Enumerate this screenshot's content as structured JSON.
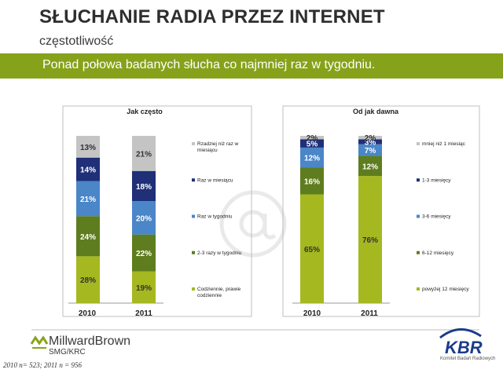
{
  "header": {
    "title": "SŁUCHANIE RADIA PRZEZ INTERNET",
    "subtitle": "częstotliwość",
    "banner": "Ponad połowa badanych słucha co najmniej raz w tygodniu."
  },
  "chart_data": [
    {
      "type": "bar",
      "stacked": true,
      "title": "Jak często",
      "categories": [
        "2010",
        "2011"
      ],
      "ylim": [
        0,
        100
      ],
      "series": [
        {
          "name": "Codziennie, prawie codziennie",
          "color": "#a5b820",
          "values": [
            28,
            19
          ],
          "labels": [
            "28%",
            "19%"
          ],
          "label_color": "#333333"
        },
        {
          "name": "2-3 razy w tygodniu",
          "color": "#5e7d1e",
          "values": [
            24,
            22
          ],
          "labels": [
            "24%",
            "22%"
          ],
          "label_color": "#ffffff"
        },
        {
          "name": "Raz w tygodniu",
          "color": "#4a86c8",
          "values": [
            21,
            20
          ],
          "labels": [
            "21%",
            "20%"
          ],
          "label_color": "#ffffff"
        },
        {
          "name": "Raz w miesiącu",
          "color": "#1f2f78",
          "values": [
            14,
            18
          ],
          "labels": [
            "14%",
            "18%"
          ],
          "label_color": "#ffffff"
        },
        {
          "name": "Rzadziej niż raz w miesiącu",
          "color": "#c4c4c4",
          "values": [
            13,
            21
          ],
          "labels": [
            "13%",
            "21%"
          ],
          "label_color": "#333333"
        }
      ]
    },
    {
      "type": "bar",
      "stacked": true,
      "title": "Od jak dawna",
      "categories": [
        "2010",
        "2011"
      ],
      "ylim": [
        0,
        100
      ],
      "series": [
        {
          "name": "powyżej 12 miesięcy",
          "color": "#a5b820",
          "values": [
            65,
            76
          ],
          "labels": [
            "65%",
            "76%"
          ],
          "label_color": "#333333"
        },
        {
          "name": "6-12 miesięcy",
          "color": "#5e7d1e",
          "values": [
            16,
            12
          ],
          "labels": [
            "16%",
            "12%"
          ],
          "label_color": "#ffffff"
        },
        {
          "name": "3-6 miesięcy",
          "color": "#4a86c8",
          "values": [
            12,
            7
          ],
          "labels": [
            "12%",
            "7%"
          ],
          "label_color": "#ffffff"
        },
        {
          "name": "1-3 miesięcy",
          "color": "#1f2f78",
          "values": [
            5,
            3
          ],
          "labels": [
            "5%",
            "3%"
          ],
          "label_color": "#ffffff"
        },
        {
          "name": "mniej niż 1 miesiąc",
          "color": "#c4c4c4",
          "values": [
            2,
            2
          ],
          "labels": [
            "2%",
            "2%"
          ],
          "label_color": "#333333"
        }
      ]
    }
  ],
  "footer": {
    "logo_left": "MillwardBrown",
    "logo_left_sub": "SMG/KRC",
    "logo_right": "KBR",
    "logo_right_sub": "Komitet Badań Radiowych",
    "note": "2010  n= 523;  2011  n = 956"
  }
}
